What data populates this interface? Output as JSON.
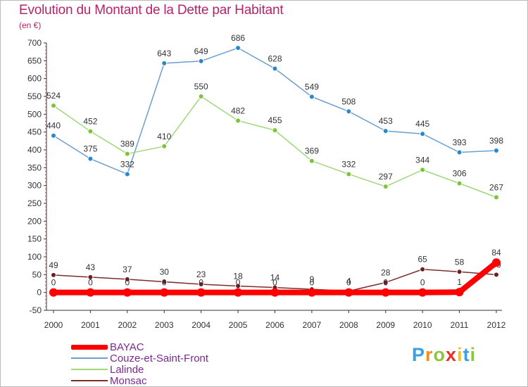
{
  "chart_data": {
    "type": "line",
    "title": "Evolution du Montant de la Dette par Habitant",
    "subtitle": "(en €)",
    "xlabel": "",
    "ylabel": "",
    "x": [
      2000,
      2001,
      2002,
      2003,
      2004,
      2005,
      2006,
      2007,
      2008,
      2009,
      2010,
      2011,
      2012
    ],
    "ylim": [
      -50,
      700
    ],
    "yticks": [
      -50,
      0,
      50,
      100,
      150,
      200,
      250,
      300,
      350,
      400,
      450,
      500,
      550,
      600,
      650,
      700
    ],
    "grid": false,
    "legend_position": "bottom-left",
    "series": [
      {
        "name": "Couze-et-Saint-Front",
        "color": "#6c9fcf",
        "marker": "#2b87c8",
        "values": [
          440,
          375,
          332,
          643,
          649,
          686,
          628,
          549,
          508,
          453,
          445,
          393,
          398
        ],
        "labels": [
          "440",
          "375",
          "332",
          "643",
          "649",
          "686",
          "628",
          "549",
          "508",
          "453",
          "445",
          "393",
          "398"
        ]
      },
      {
        "name": "Lalinde",
        "color": "#9fd87a",
        "marker": "#7cc43a",
        "values": [
          524,
          452,
          389,
          410,
          550,
          482,
          455,
          369,
          332,
          297,
          344,
          306,
          267
        ],
        "labels": [
          "524",
          "452",
          "389",
          "410",
          "550",
          "482",
          "455",
          "369",
          "332",
          "297",
          "344",
          "306",
          "267"
        ]
      },
      {
        "name": "Monsac",
        "color": "#7b2e2e",
        "marker": "#6b1f1f",
        "values": [
          49,
          43,
          37,
          30,
          23,
          18,
          14,
          9,
          4,
          28,
          65,
          58,
          50
        ],
        "labels": [
          "49",
          "43",
          "37",
          "30",
          "23",
          "18",
          "14",
          "9",
          "4",
          "28",
          "65",
          "58",
          "50"
        ]
      },
      {
        "name": "BAYAC",
        "color": "#ff0000",
        "marker": "#ff0000",
        "values": [
          0,
          0,
          0,
          0,
          0,
          0,
          0,
          0,
          0,
          0,
          0,
          1,
          84
        ],
        "labels": [
          "0",
          "0",
          "0",
          "0",
          "0",
          "0",
          "0",
          "0",
          "0",
          "0",
          "0",
          "1",
          "84"
        ]
      }
    ]
  },
  "legend": [
    {
      "label": "BAYAC",
      "color": "#ff0000"
    },
    {
      "label": "Couze-et-Saint-Front",
      "color": "#6c9fcf"
    },
    {
      "label": "Lalinde",
      "color": "#9fd87a"
    },
    {
      "label": "Monsac",
      "color": "#7b2e2e"
    }
  ],
  "logo": {
    "letters": [
      "P",
      "r",
      "o",
      "x",
      "i",
      "t",
      "i"
    ],
    "colors": [
      "#3aa0e0",
      "#f28c1c",
      "#8cc63f",
      "#e8302a",
      "#f7c21b",
      "#3aa0e0",
      "#8cc63f"
    ]
  }
}
